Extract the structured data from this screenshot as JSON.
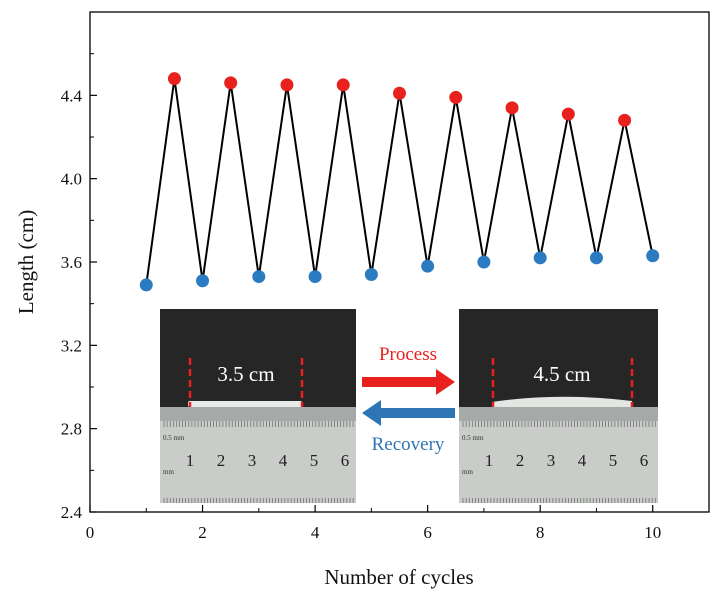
{
  "chart_data": {
    "type": "line",
    "xlabel": "Number of cycles",
    "ylabel": "Length (cm)",
    "xlim": [
      0,
      11
    ],
    "ylim": [
      2.4,
      4.8
    ],
    "xticks": [
      "0",
      "2",
      "4",
      "6",
      "8",
      "10"
    ],
    "yticks": [
      "2.4",
      "2.8",
      "3.2",
      "3.6",
      "4.0",
      "4.4"
    ],
    "line_color": "#000000",
    "series": [
      {
        "name": "",
        "color": "#2b7bc2",
        "x": [
          1,
          2,
          3,
          4,
          5,
          6,
          7,
          8,
          9,
          10
        ],
        "y": [
          3.49,
          3.51,
          3.53,
          3.53,
          3.54,
          3.58,
          3.6,
          3.62,
          3.62,
          3.63
        ]
      },
      {
        "name": "",
        "color": "#e8211e",
        "x": [
          1.5,
          2.5,
          3.5,
          4.5,
          5.5,
          6.5,
          7.5,
          8.5,
          9.5
        ],
        "y": [
          4.48,
          4.46,
          4.45,
          4.45,
          4.41,
          4.39,
          4.34,
          4.31,
          4.28
        ]
      }
    ],
    "grid": false
  },
  "inset": {
    "left_photo_label": "3.5 cm",
    "right_photo_label": "4.5 cm",
    "process_label": "Process",
    "recovery_label": "Recovery",
    "process_color": "#e8211e",
    "recovery_color": "#2e75b6",
    "ruler_numbers": [
      "1",
      "2",
      "3",
      "4",
      "5",
      "6"
    ],
    "ruler_unit_top": "0.5 mm",
    "ruler_unit_bottom": "mm"
  }
}
